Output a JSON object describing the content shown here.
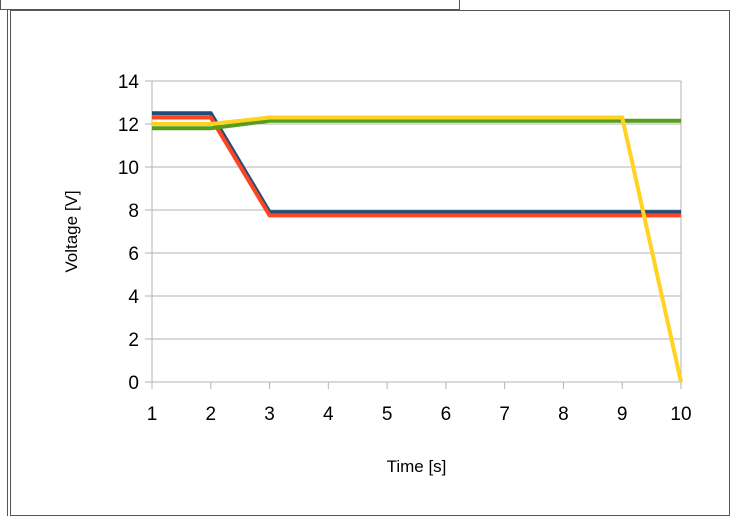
{
  "chart_data": {
    "type": "line",
    "xlabel": "Time [s]",
    "ylabel": "Voltage [V]",
    "xlim": [
      1,
      10
    ],
    "ylim": [
      0,
      14
    ],
    "x_ticks": [
      "1",
      "2",
      "3",
      "4",
      "5",
      "6",
      "7",
      "8",
      "9",
      "10"
    ],
    "y_ticks": [
      "0",
      "2",
      "4",
      "6",
      "8",
      "10",
      "12",
      "14"
    ],
    "grid": "horizontal",
    "legend": "none",
    "x": [
      1,
      2,
      3,
      4,
      5,
      6,
      7,
      8,
      9,
      10
    ],
    "series": [
      {
        "color": "#1f4e79",
        "values": [
          12.5,
          12.5,
          7.9,
          7.9,
          7.9,
          7.9,
          7.9,
          7.9,
          7.9,
          7.9
        ]
      },
      {
        "color": "#ff4422",
        "values": [
          12.3,
          12.3,
          7.75,
          7.75,
          7.75,
          7.75,
          7.75,
          7.75,
          7.75,
          7.75
        ]
      },
      {
        "color": "#579d1c",
        "values": [
          11.8,
          11.8,
          12.15,
          12.15,
          12.15,
          12.15,
          12.15,
          12.15,
          12.15,
          12.15
        ]
      },
      {
        "color": "#ffd320",
        "values": [
          12.0,
          12.0,
          12.3,
          12.3,
          12.3,
          12.3,
          12.3,
          12.3,
          12.3,
          0
        ]
      }
    ]
  }
}
